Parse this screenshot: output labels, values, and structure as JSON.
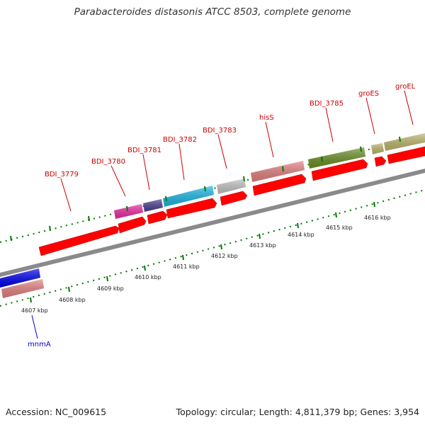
{
  "title": "Parabacteroides distasonis ATCC 8503, complete genome",
  "footer": {
    "accession": "Accession: NC_009615",
    "summary": "Topology: circular; Length: 4,811,379 bp; Genes: 3,954"
  },
  "colors": {
    "backbone": "#8a8a8a",
    "cds": "#ff0000",
    "tick": "#007a00",
    "label_red": "#cc0000",
    "label_blue": "#0000cc"
  },
  "kbp_ticks": [
    "4607 kbp",
    "4608 kbp",
    "4609 kbp",
    "4610 kbp",
    "4611 kbp",
    "4612 kbp",
    "4613 kbp",
    "4614 kbp",
    "4615 kbp",
    "4616 kbp"
  ],
  "gene_labels": [
    {
      "text": "mnmA",
      "color": "#0000cc"
    },
    {
      "text": "BDI_3779",
      "color": "#cc0000"
    },
    {
      "text": "BDI_3780",
      "color": "#cc0000"
    },
    {
      "text": "BDI_3781",
      "color": "#cc0000"
    },
    {
      "text": "BDI_3782",
      "color": "#cc0000"
    },
    {
      "text": "BDI_3783",
      "color": "#cc0000"
    },
    {
      "text": "hisS",
      "color": "#cc0000"
    },
    {
      "text": "BDI_3785",
      "color": "#cc0000"
    },
    {
      "text": "groES",
      "color": "#cc0000"
    },
    {
      "text": "groEL",
      "color": "#cc0000"
    }
  ],
  "feature_tracks": [
    {
      "gene": "mnmA",
      "color": "#e58080"
    },
    {
      "gene": "BDI_3780",
      "color": "#ee2aa6"
    },
    {
      "gene": "BDI_3781",
      "color": "#4a3f8f"
    },
    {
      "gene": "BDI_3782",
      "color": "#1ab8e6"
    },
    {
      "gene": "BDI_3783",
      "color": "#c4c4c4"
    },
    {
      "gene": "hisS",
      "color": "#e58080"
    },
    {
      "gene": "BDI_3785",
      "color": "#6b8e23"
    },
    {
      "gene": "groES",
      "color": "#bdb76b"
    },
    {
      "gene": "groEL",
      "color": "#bdb76b"
    },
    {
      "gene": "other",
      "color": "#0000ee"
    }
  ]
}
